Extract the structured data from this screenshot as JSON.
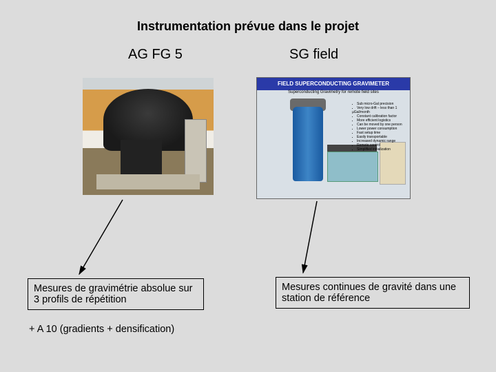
{
  "title": "Instrumentation prévue dans le projet",
  "left": {
    "label": "AG FG 5",
    "caption": "Mesures de gravimétrie absolue sur 3 profils de répétition",
    "extra": "+  A 10 (gradients + densification)"
  },
  "right": {
    "label": "SG field",
    "img_header": "FIELD SUPERCONDUCTING GRAVIMETER",
    "img_subheader": "Superconducting Gravimetry for remote field sites",
    "caption": "Mesures continues de gravité dans une station de référence",
    "bullets": [
      "Sub micro-Gal precision",
      "Very low drift – less than 1 µGal/month",
      "Constant calibration factor",
      "More efficient logistics",
      "Can be moved by one person",
      "Lower power consumption",
      "Fast setup time",
      "Easily transportable",
      "Increased dynamic range",
      "Remote control",
      "Simplified initialization"
    ]
  },
  "colors": {
    "page_bg": "#dcdcdc",
    "header_bar": "#2a3aa8",
    "cylinder": "#3d85c6"
  }
}
